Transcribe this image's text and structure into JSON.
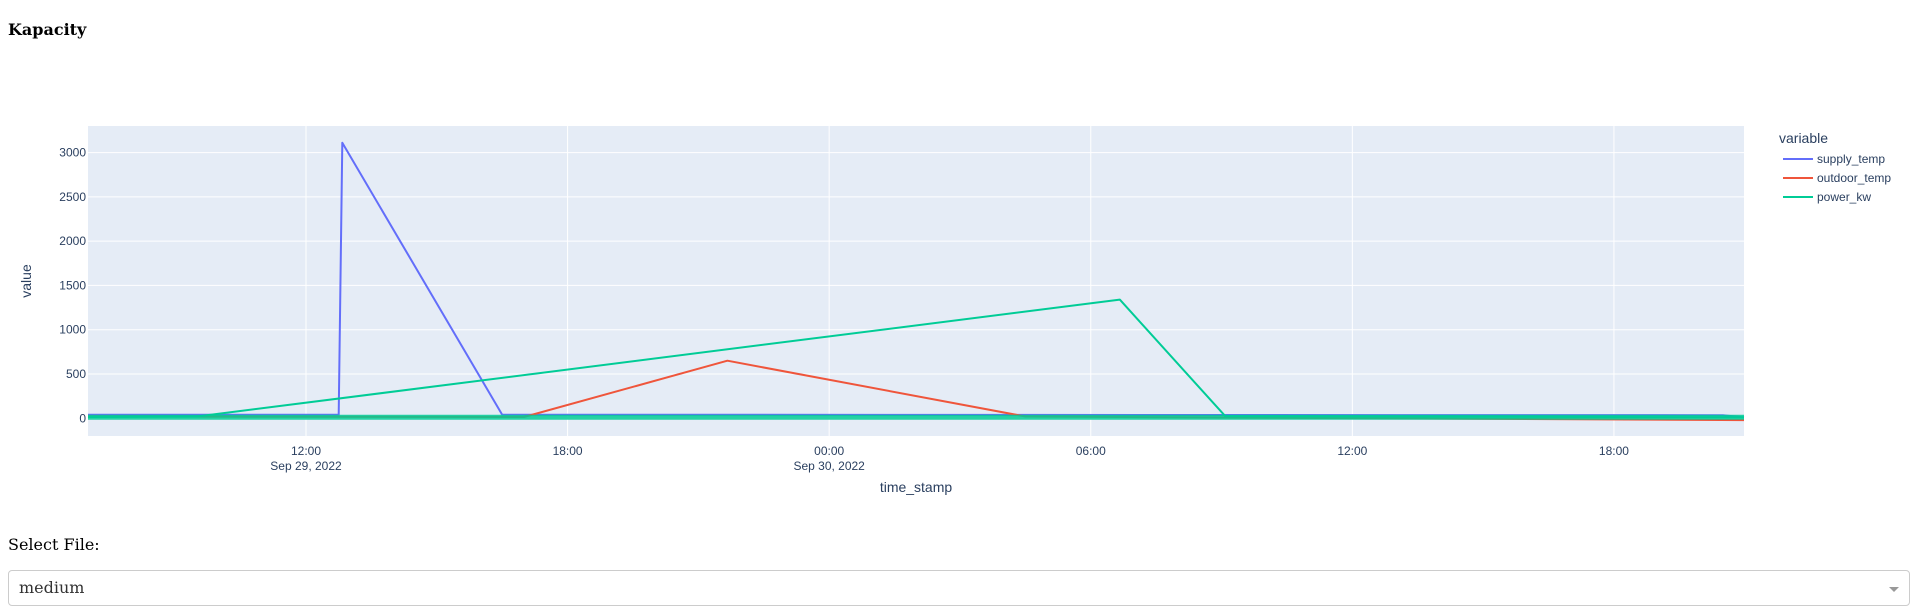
{
  "page": {
    "title": "Kapacity"
  },
  "file_select": {
    "label": "Select File:",
    "value": "medium"
  },
  "chart_data": {
    "type": "line",
    "title": "",
    "xlabel": "time_stamp",
    "ylabel": "value",
    "legend_title": "variable",
    "legend_placement": "top-right",
    "grid": true,
    "x_range": [
      "2022-09-29T07:00",
      "2022-09-30T20:59"
    ],
    "ylim": [
      -200,
      3300
    ],
    "y_ticks": [
      0,
      500,
      1000,
      1500,
      2000,
      2500,
      3000
    ],
    "x_ticks": [
      {
        "t": "2022-09-29T12:00",
        "label": "12:00",
        "sub": "Sep 29, 2022"
      },
      {
        "t": "2022-09-29T18:00",
        "label": "18:00",
        "sub": ""
      },
      {
        "t": "2022-09-30T00:00",
        "label": "00:00",
        "sub": "Sep 30, 2022"
      },
      {
        "t": "2022-09-30T06:00",
        "label": "06:00",
        "sub": ""
      },
      {
        "t": "2022-09-30T12:00",
        "label": "12:00",
        "sub": ""
      },
      {
        "t": "2022-09-30T18:00",
        "label": "18:00",
        "sub": ""
      }
    ],
    "series": [
      {
        "name": "supply_temp",
        "color": "#636efa",
        "points": [
          [
            "2022-09-29T07:00",
            40
          ],
          [
            "2022-09-29T12:45",
            40
          ],
          [
            "2022-09-29T12:50",
            3110
          ],
          [
            "2022-09-29T16:30",
            40
          ],
          [
            "2022-09-30T20:30",
            35
          ],
          [
            "2022-09-30T20:59",
            10
          ]
        ]
      },
      {
        "name": "outdoor_temp",
        "color": "#ef553b",
        "points": [
          [
            "2022-09-29T07:00",
            20
          ],
          [
            "2022-09-29T17:00",
            15
          ],
          [
            "2022-09-29T21:40",
            650
          ],
          [
            "2022-09-30T04:30",
            20
          ],
          [
            "2022-09-30T20:59",
            -20
          ]
        ]
      },
      {
        "name": "power_kw",
        "color": "#00cc96",
        "points": [
          [
            "2022-09-29T07:00",
            15
          ],
          [
            "2022-09-29T09:30",
            20
          ],
          [
            "2022-09-30T06:40",
            1340
          ],
          [
            "2022-09-30T09:05",
            25
          ],
          [
            "2022-09-30T20:59",
            10
          ]
        ]
      }
    ]
  }
}
